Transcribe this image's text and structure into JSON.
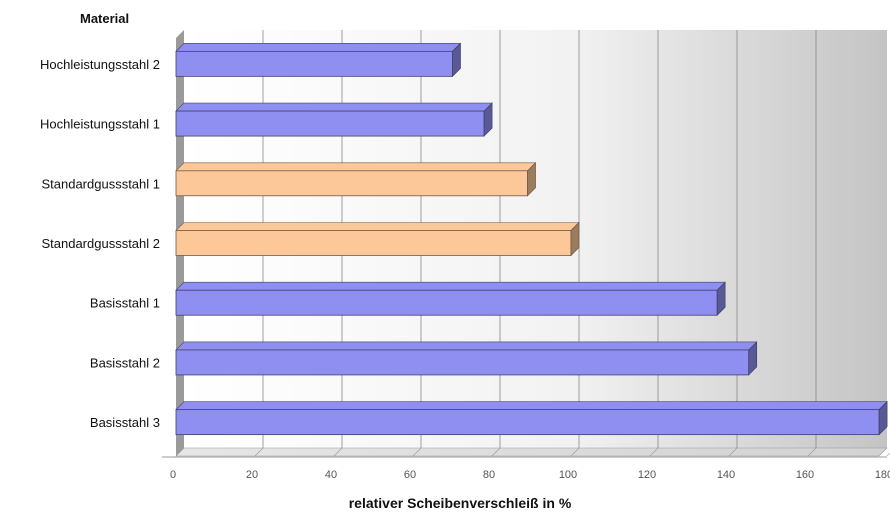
{
  "chart_data": {
    "type": "bar",
    "orientation": "horizontal",
    "categories": [
      "Hochleistungsstahl 2",
      "Hochleistungsstahl 1",
      "Standardgussstahl 1",
      "Standardgussstahl 2",
      "Basisstahl 1",
      "Basisstahl 2",
      "Basisstahl 3"
    ],
    "values": [
      70,
      78,
      89,
      100,
      137,
      145,
      178
    ],
    "bar_colors": [
      "#8f8ff2",
      "#8f8ff2",
      "#fcc89a",
      "#fcc89a",
      "#8f8ff2",
      "#8f8ff2",
      "#8f8ff2"
    ],
    "ylabel": "Material",
    "xlabel": "relativer Scheibenverschleiß in %",
    "xlim": [
      0,
      180
    ],
    "xticks": [
      "0",
      "20",
      "40",
      "60",
      "80",
      "100",
      "120",
      "140",
      "160",
      "180"
    ],
    "grid": true,
    "legend": "none",
    "style": "3d"
  }
}
